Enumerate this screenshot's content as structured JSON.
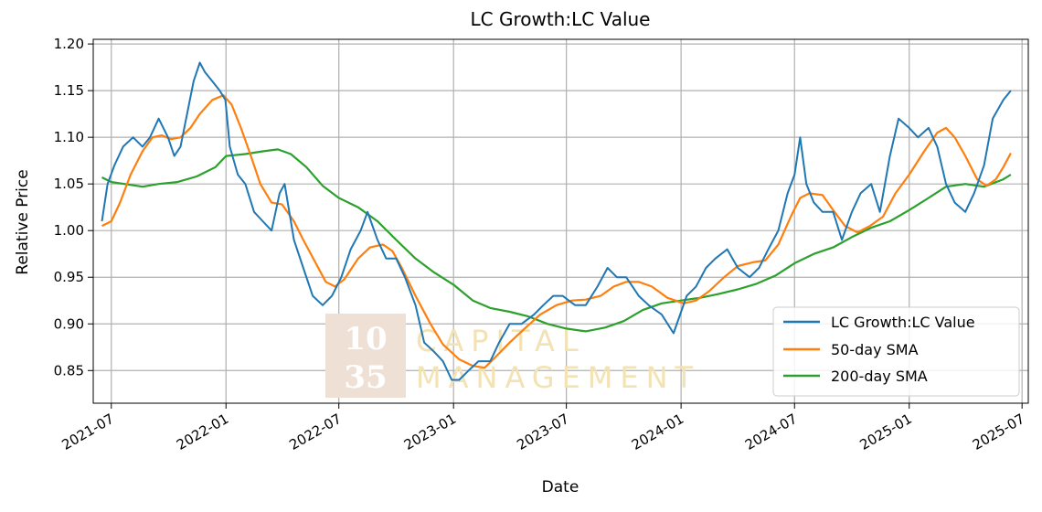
{
  "chart_data": {
    "type": "line",
    "title": "LC Growth:LC Value",
    "xlabel": "Date",
    "ylabel": "Relative Price",
    "ylim": [
      0.815,
      1.205
    ],
    "xlim": [
      "2021-06-02",
      "2025-07-11"
    ],
    "x_ticks": [
      "2021-07",
      "2022-01",
      "2022-07",
      "2023-01",
      "2023-07",
      "2024-01",
      "2024-07",
      "2025-01",
      "2025-07"
    ],
    "y_ticks": [
      "0.85",
      "0.90",
      "0.95",
      "1.00",
      "1.05",
      "1.10",
      "1.15",
      "1.20"
    ],
    "grid": true,
    "legend_position": "lower-right",
    "series": [
      {
        "name": "LC Growth:LC Value",
        "color": "#1f77b4",
        "points": [
          [
            "2021-06-16",
            1.01
          ],
          [
            "2021-06-25",
            1.05
          ],
          [
            "2021-07-06",
            1.07
          ],
          [
            "2021-07-20",
            1.09
          ],
          [
            "2021-08-05",
            1.1
          ],
          [
            "2021-08-20",
            1.09
          ],
          [
            "2021-09-01",
            1.1
          ],
          [
            "2021-09-15",
            1.12
          ],
          [
            "2021-09-30",
            1.1
          ],
          [
            "2021-10-10",
            1.08
          ],
          [
            "2021-10-20",
            1.09
          ],
          [
            "2021-11-01",
            1.13
          ],
          [
            "2021-11-10",
            1.16
          ],
          [
            "2021-11-20",
            1.18
          ],
          [
            "2021-11-28",
            1.17
          ],
          [
            "2021-12-10",
            1.16
          ],
          [
            "2021-12-22",
            1.15
          ],
          [
            "2021-12-31",
            1.14
          ],
          [
            "2022-01-07",
            1.09
          ],
          [
            "2022-01-20",
            1.06
          ],
          [
            "2022-02-01",
            1.05
          ],
          [
            "2022-02-15",
            1.02
          ],
          [
            "2022-03-01",
            1.01
          ],
          [
            "2022-03-15",
            1.0
          ],
          [
            "2022-03-28",
            1.04
          ],
          [
            "2022-04-05",
            1.05
          ],
          [
            "2022-04-20",
            0.99
          ],
          [
            "2022-05-05",
            0.96
          ],
          [
            "2022-05-20",
            0.93
          ],
          [
            "2022-06-05",
            0.92
          ],
          [
            "2022-06-20",
            0.93
          ],
          [
            "2022-07-05",
            0.95
          ],
          [
            "2022-07-20",
            0.98
          ],
          [
            "2022-08-05",
            1.0
          ],
          [
            "2022-08-16",
            1.02
          ],
          [
            "2022-09-01",
            0.99
          ],
          [
            "2022-09-15",
            0.97
          ],
          [
            "2022-10-01",
            0.97
          ],
          [
            "2022-10-15",
            0.95
          ],
          [
            "2022-11-01",
            0.92
          ],
          [
            "2022-11-15",
            0.88
          ],
          [
            "2022-12-01",
            0.87
          ],
          [
            "2022-12-15",
            0.86
          ],
          [
            "2022-12-29",
            0.84
          ],
          [
            "2023-01-10",
            0.84
          ],
          [
            "2023-01-25",
            0.85
          ],
          [
            "2023-02-10",
            0.86
          ],
          [
            "2023-03-01",
            0.86
          ],
          [
            "2023-03-15",
            0.88
          ],
          [
            "2023-04-01",
            0.9
          ],
          [
            "2023-04-20",
            0.9
          ],
          [
            "2023-05-10",
            0.91
          ],
          [
            "2023-05-25",
            0.92
          ],
          [
            "2023-06-10",
            0.93
          ],
          [
            "2023-06-25",
            0.93
          ],
          [
            "2023-07-15",
            0.92
          ],
          [
            "2023-08-01",
            0.92
          ],
          [
            "2023-08-20",
            0.94
          ],
          [
            "2023-09-05",
            0.96
          ],
          [
            "2023-09-20",
            0.95
          ],
          [
            "2023-10-05",
            0.95
          ],
          [
            "2023-10-25",
            0.93
          ],
          [
            "2023-11-10",
            0.92
          ],
          [
            "2023-12-01",
            0.91
          ],
          [
            "2023-12-20",
            0.89
          ],
          [
            "2024-01-10",
            0.93
          ],
          [
            "2024-01-25",
            0.94
          ],
          [
            "2024-02-10",
            0.96
          ],
          [
            "2024-02-25",
            0.97
          ],
          [
            "2024-03-15",
            0.98
          ],
          [
            "2024-04-01",
            0.96
          ],
          [
            "2024-04-20",
            0.95
          ],
          [
            "2024-05-05",
            0.96
          ],
          [
            "2024-05-20",
            0.98
          ],
          [
            "2024-06-05",
            1.0
          ],
          [
            "2024-06-20",
            1.04
          ],
          [
            "2024-07-01",
            1.06
          ],
          [
            "2024-07-10",
            1.1
          ],
          [
            "2024-07-20",
            1.05
          ],
          [
            "2024-08-01",
            1.03
          ],
          [
            "2024-08-15",
            1.02
          ],
          [
            "2024-09-01",
            1.02
          ],
          [
            "2024-09-15",
            0.99
          ],
          [
            "2024-10-01",
            1.02
          ],
          [
            "2024-10-15",
            1.04
          ],
          [
            "2024-11-01",
            1.05
          ],
          [
            "2024-11-15",
            1.02
          ],
          [
            "2024-12-01",
            1.08
          ],
          [
            "2024-12-15",
            1.12
          ],
          [
            "2025-01-01",
            1.11
          ],
          [
            "2025-01-15",
            1.1
          ],
          [
            "2025-02-01",
            1.11
          ],
          [
            "2025-02-15",
            1.09
          ],
          [
            "2025-03-01",
            1.05
          ],
          [
            "2025-03-15",
            1.03
          ],
          [
            "2025-04-01",
            1.02
          ],
          [
            "2025-04-15",
            1.04
          ],
          [
            "2025-05-01",
            1.07
          ],
          [
            "2025-05-15",
            1.12
          ],
          [
            "2025-06-01",
            1.14
          ],
          [
            "2025-06-13",
            1.15
          ]
        ]
      },
      {
        "name": "50-day SMA",
        "color": "#ff7f0e",
        "points": [
          [
            "2021-06-16",
            1.005
          ],
          [
            "2021-07-01",
            1.01
          ],
          [
            "2021-07-15",
            1.03
          ],
          [
            "2021-08-01",
            1.06
          ],
          [
            "2021-08-20",
            1.085
          ],
          [
            "2021-09-05",
            1.1
          ],
          [
            "2021-09-20",
            1.102
          ],
          [
            "2021-10-05",
            1.098
          ],
          [
            "2021-10-20",
            1.1
          ],
          [
            "2021-11-05",
            1.11
          ],
          [
            "2021-11-20",
            1.125
          ],
          [
            "2021-12-10",
            1.14
          ],
          [
            "2021-12-28",
            1.145
          ],
          [
            "2022-01-10",
            1.135
          ],
          [
            "2022-01-25",
            1.11
          ],
          [
            "2022-02-10",
            1.08
          ],
          [
            "2022-02-25",
            1.05
          ],
          [
            "2022-03-15",
            1.03
          ],
          [
            "2022-04-01",
            1.028
          ],
          [
            "2022-04-20",
            1.01
          ],
          [
            "2022-05-05",
            0.99
          ],
          [
            "2022-05-25",
            0.965
          ],
          [
            "2022-06-10",
            0.945
          ],
          [
            "2022-06-25",
            0.94
          ],
          [
            "2022-07-10",
            0.948
          ],
          [
            "2022-08-01",
            0.97
          ],
          [
            "2022-08-20",
            0.982
          ],
          [
            "2022-09-10",
            0.985
          ],
          [
            "2022-09-25",
            0.978
          ],
          [
            "2022-10-10",
            0.96
          ],
          [
            "2022-11-01",
            0.93
          ],
          [
            "2022-11-25",
            0.9
          ],
          [
            "2022-12-15",
            0.878
          ],
          [
            "2023-01-10",
            0.862
          ],
          [
            "2023-02-01",
            0.855
          ],
          [
            "2023-02-20",
            0.853
          ],
          [
            "2023-03-10",
            0.865
          ],
          [
            "2023-04-01",
            0.88
          ],
          [
            "2023-04-25",
            0.895
          ],
          [
            "2023-05-20",
            0.91
          ],
          [
            "2023-06-15",
            0.92
          ],
          [
            "2023-07-10",
            0.925
          ],
          [
            "2023-08-01",
            0.926
          ],
          [
            "2023-08-25",
            0.93
          ],
          [
            "2023-09-15",
            0.94
          ],
          [
            "2023-10-05",
            0.945
          ],
          [
            "2023-10-25",
            0.945
          ],
          [
            "2023-11-15",
            0.94
          ],
          [
            "2023-12-10",
            0.928
          ],
          [
            "2024-01-05",
            0.922
          ],
          [
            "2024-01-25",
            0.925
          ],
          [
            "2024-02-15",
            0.935
          ],
          [
            "2024-03-10",
            0.95
          ],
          [
            "2024-04-01",
            0.962
          ],
          [
            "2024-04-25",
            0.966
          ],
          [
            "2024-05-15",
            0.968
          ],
          [
            "2024-06-05",
            0.985
          ],
          [
            "2024-06-25",
            1.015
          ],
          [
            "2024-07-10",
            1.035
          ],
          [
            "2024-07-25",
            1.04
          ],
          [
            "2024-08-15",
            1.038
          ],
          [
            "2024-09-01",
            1.022
          ],
          [
            "2024-09-20",
            1.005
          ],
          [
            "2024-10-10",
            0.998
          ],
          [
            "2024-10-30",
            1.005
          ],
          [
            "2024-11-20",
            1.015
          ],
          [
            "2024-12-10",
            1.04
          ],
          [
            "2025-01-01",
            1.06
          ],
          [
            "2025-01-25",
            1.085
          ],
          [
            "2025-02-15",
            1.105
          ],
          [
            "2025-03-01",
            1.11
          ],
          [
            "2025-03-15",
            1.1
          ],
          [
            "2025-04-01",
            1.08
          ],
          [
            "2025-04-20",
            1.055
          ],
          [
            "2025-05-05",
            1.048
          ],
          [
            "2025-05-20",
            1.055
          ],
          [
            "2025-06-01",
            1.068
          ],
          [
            "2025-06-13",
            1.083
          ]
        ]
      },
      {
        "name": "200-day SMA",
        "color": "#2ca02c",
        "points": [
          [
            "2021-06-16",
            1.057
          ],
          [
            "2021-07-01",
            1.052
          ],
          [
            "2021-08-01",
            1.049
          ],
          [
            "2021-08-20",
            1.047
          ],
          [
            "2021-09-15",
            1.05
          ],
          [
            "2021-10-15",
            1.052
          ],
          [
            "2021-11-15",
            1.058
          ],
          [
            "2021-12-15",
            1.068
          ],
          [
            "2022-01-01",
            1.08
          ],
          [
            "2022-02-01",
            1.082
          ],
          [
            "2022-03-01",
            1.085
          ],
          [
            "2022-03-25",
            1.087
          ],
          [
            "2022-04-15",
            1.082
          ],
          [
            "2022-05-10",
            1.068
          ],
          [
            "2022-06-05",
            1.048
          ],
          [
            "2022-07-01",
            1.035
          ],
          [
            "2022-08-01",
            1.025
          ],
          [
            "2022-09-01",
            1.01
          ],
          [
            "2022-10-01",
            0.99
          ],
          [
            "2022-11-01",
            0.97
          ],
          [
            "2022-12-01",
            0.955
          ],
          [
            "2023-01-01",
            0.942
          ],
          [
            "2023-02-01",
            0.925
          ],
          [
            "2023-03-01",
            0.917
          ],
          [
            "2023-04-01",
            0.913
          ],
          [
            "2023-05-01",
            0.908
          ],
          [
            "2023-06-01",
            0.9
          ],
          [
            "2023-07-01",
            0.895
          ],
          [
            "2023-08-01",
            0.892
          ],
          [
            "2023-09-01",
            0.896
          ],
          [
            "2023-10-01",
            0.903
          ],
          [
            "2023-11-01",
            0.915
          ],
          [
            "2023-12-01",
            0.922
          ],
          [
            "2024-01-01",
            0.925
          ],
          [
            "2024-02-01",
            0.928
          ],
          [
            "2024-03-01",
            0.932
          ],
          [
            "2024-04-01",
            0.937
          ],
          [
            "2024-05-01",
            0.943
          ],
          [
            "2024-06-01",
            0.952
          ],
          [
            "2024-07-01",
            0.965
          ],
          [
            "2024-08-01",
            0.975
          ],
          [
            "2024-09-01",
            0.982
          ],
          [
            "2024-10-01",
            0.993
          ],
          [
            "2024-11-01",
            1.003
          ],
          [
            "2024-12-01",
            1.01
          ],
          [
            "2025-01-01",
            1.022
          ],
          [
            "2025-02-01",
            1.035
          ],
          [
            "2025-03-01",
            1.047
          ],
          [
            "2025-04-01",
            1.05
          ],
          [
            "2025-05-01",
            1.047
          ],
          [
            "2025-06-01",
            1.055
          ],
          [
            "2025-06-13",
            1.06
          ]
        ]
      }
    ]
  },
  "watermark": {
    "top_num": "10",
    "bottom_num": "35",
    "line1": "CAPITAL",
    "line2": "MANAGEMENT"
  }
}
